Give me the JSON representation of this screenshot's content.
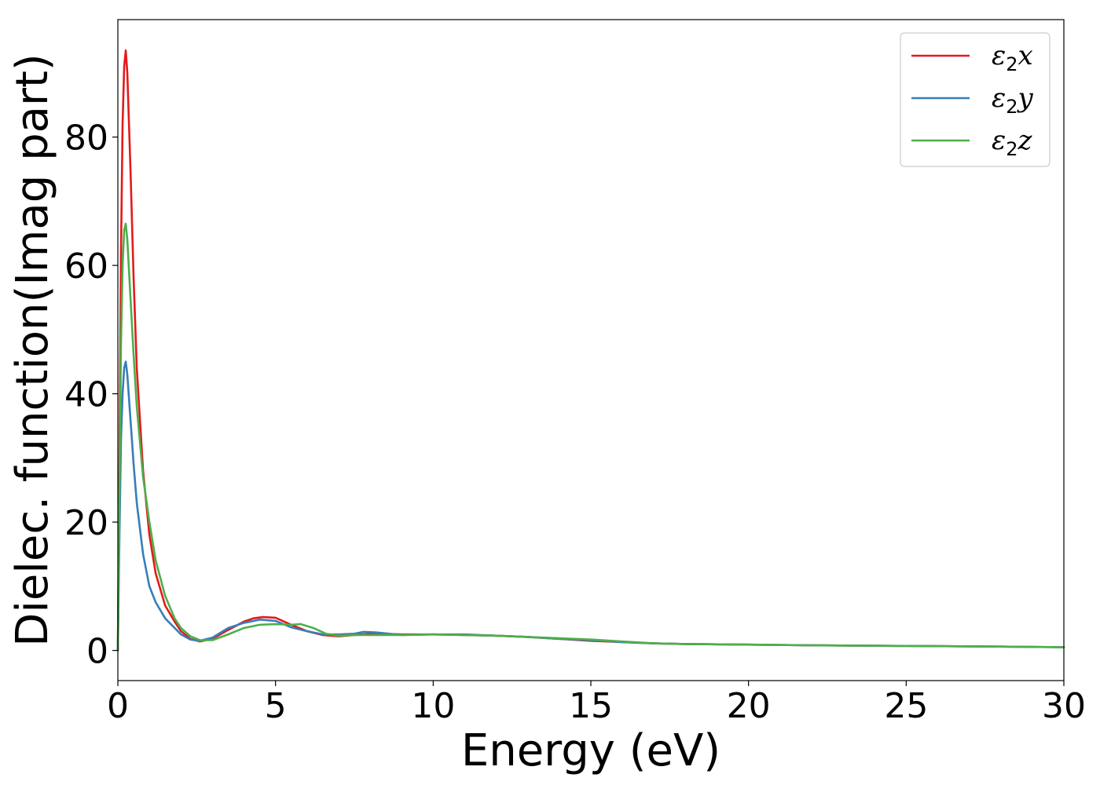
{
  "chart_data": {
    "type": "line",
    "title": "",
    "xlabel": "Energy (eV)",
    "ylabel": "Dielec. function(Imag part)",
    "xlim": [
      0,
      30
    ],
    "ylim": [
      -4.7,
      98.3
    ],
    "xticks": [
      0,
      5,
      10,
      15,
      20,
      25,
      30
    ],
    "yticks": [
      0,
      20,
      40,
      60,
      80
    ],
    "grid": false,
    "legend_position": "top-right",
    "series": [
      {
        "name": "ε2x",
        "legend_main": "ε",
        "legend_sub": "2",
        "legend_tail": "x",
        "color": "#e41a1c",
        "x": [
          0,
          0.05,
          0.1,
          0.15,
          0.2,
          0.25,
          0.3,
          0.4,
          0.5,
          0.6,
          0.8,
          1.0,
          1.2,
          1.5,
          1.8,
          2.0,
          2.3,
          2.6,
          3.0,
          3.5,
          4.0,
          4.3,
          4.6,
          5.0,
          5.5,
          6.0,
          6.5,
          7.0,
          7.5,
          8.0,
          9.0,
          10.0,
          11.0,
          12.0,
          13.0,
          14.0,
          15.0,
          16.0,
          17.0,
          18.0,
          20.0,
          22.0,
          25.0,
          28.0,
          30.0
        ],
        "y": [
          0,
          30,
          62,
          82,
          91,
          93.5,
          90,
          75,
          58,
          44,
          28,
          18,
          12,
          7,
          4.5,
          3,
          1.8,
          1.4,
          1.8,
          3.2,
          4.5,
          5.0,
          5.2,
          5.1,
          4.0,
          3.0,
          2.4,
          2.2,
          2.4,
          2.6,
          2.5,
          2.5,
          2.4,
          2.3,
          2.1,
          1.8,
          1.5,
          1.3,
          1.1,
          1.0,
          0.9,
          0.8,
          0.7,
          0.6,
          0.5
        ]
      },
      {
        "name": "ε2y",
        "legend_main": "ε",
        "legend_sub": "2",
        "legend_tail": "y",
        "color": "#377eb8",
        "x": [
          0,
          0.05,
          0.1,
          0.15,
          0.2,
          0.25,
          0.3,
          0.4,
          0.5,
          0.6,
          0.8,
          1.0,
          1.2,
          1.5,
          1.8,
          2.0,
          2.3,
          2.6,
          3.0,
          3.5,
          4.0,
          4.5,
          5.0,
          5.5,
          6.0,
          6.5,
          7.0,
          7.5,
          7.8,
          8.2,
          9.0,
          10.0,
          11.0,
          12.0,
          13.0,
          14.0,
          15.0,
          16.0,
          17.0,
          18.0,
          20.0,
          22.0,
          25.0,
          28.0,
          30.0
        ],
        "y": [
          0,
          18,
          33,
          40,
          44,
          45,
          43,
          36,
          29,
          23,
          15,
          10,
          7.5,
          5,
          3.5,
          2.5,
          1.7,
          1.5,
          2.0,
          3.5,
          4.3,
          4.8,
          4.6,
          3.6,
          3.0,
          2.5,
          2.5,
          2.6,
          2.9,
          2.8,
          2.4,
          2.5,
          2.5,
          2.3,
          2.1,
          1.8,
          1.6,
          1.3,
          1.1,
          1.0,
          0.9,
          0.8,
          0.7,
          0.6,
          0.5
        ]
      },
      {
        "name": "ε2z",
        "legend_main": "ε",
        "legend_sub": "2",
        "legend_tail": "z",
        "color": "#4daf4a",
        "x": [
          0,
          0.05,
          0.1,
          0.15,
          0.2,
          0.25,
          0.3,
          0.4,
          0.5,
          0.6,
          0.8,
          1.0,
          1.2,
          1.5,
          1.8,
          2.0,
          2.3,
          2.6,
          3.0,
          3.5,
          4.0,
          4.5,
          5.0,
          5.5,
          5.8,
          6.2,
          6.6,
          7.0,
          7.5,
          8.0,
          9.0,
          10.0,
          11.0,
          12.0,
          13.0,
          14.0,
          15.0,
          16.0,
          17.0,
          18.0,
          20.0,
          22.0,
          25.0,
          28.0,
          30.0
        ],
        "y": [
          0,
          25,
          48,
          60,
          65.5,
          66.5,
          64,
          55,
          46,
          38,
          27,
          20,
          14,
          8.5,
          5,
          3.5,
          2.2,
          1.6,
          1.6,
          2.5,
          3.5,
          4.0,
          4.1,
          4.0,
          4.1,
          3.5,
          2.6,
          2.3,
          2.4,
          2.4,
          2.4,
          2.5,
          2.4,
          2.3,
          2.1,
          1.9,
          1.7,
          1.4,
          1.1,
          1.0,
          0.9,
          0.8,
          0.7,
          0.6,
          0.5
        ]
      }
    ]
  }
}
